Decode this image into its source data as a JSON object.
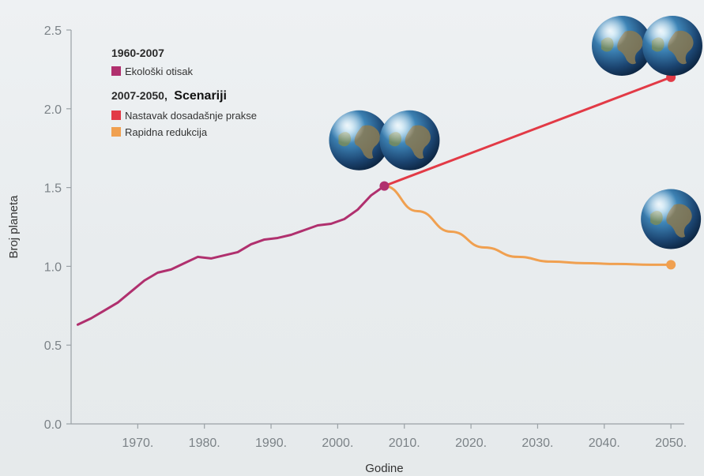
{
  "chart_data": {
    "type": "line",
    "title": "",
    "xlabel": "Godine",
    "ylabel": "Broj planeta",
    "xlim": [
      1960,
      2052
    ],
    "ylim": [
      0,
      2.5
    ],
    "x_ticks": [
      1970,
      1980,
      1990,
      2000,
      2010,
      2020,
      2030,
      2040,
      2050
    ],
    "x_tick_labels": [
      "1970.",
      "1980.",
      "1990.",
      "2000.",
      "2010.",
      "2020.",
      "2030.",
      "2040.",
      "2050."
    ],
    "y_ticks": [
      0,
      0.5,
      1.0,
      1.5,
      2.0,
      2.5
    ],
    "y_tick_labels": [
      "0.0",
      "0.5",
      "1.0",
      "1.5",
      "2.0",
      "2.5"
    ],
    "grid": false,
    "legend": {
      "placement": "top-left",
      "group1_heading": "1960-2007",
      "group2_heading_years": "2007-2050,",
      "group2_heading_word": "Scenariji"
    },
    "series": [
      {
        "name": "Ekološki otisak",
        "color": "#b0306e",
        "x": [
          1961,
          1963,
          1965,
          1967,
          1969,
          1971,
          1973,
          1975,
          1977,
          1979,
          1981,
          1983,
          1985,
          1987,
          1989,
          1991,
          1993,
          1995,
          1997,
          1999,
          2001,
          2003,
          2005,
          2007
        ],
        "y": [
          0.63,
          0.67,
          0.72,
          0.77,
          0.84,
          0.91,
          0.96,
          0.98,
          1.02,
          1.06,
          1.05,
          1.07,
          1.09,
          1.14,
          1.17,
          1.18,
          1.2,
          1.23,
          1.26,
          1.27,
          1.3,
          1.36,
          1.45,
          1.51
        ]
      },
      {
        "name": "Nastavak dosadašnje prakse",
        "color": "#e23a46",
        "x": [
          2007,
          2050
        ],
        "y": [
          1.51,
          2.2
        ],
        "end_marker": true
      },
      {
        "name": "Rapidna redukcija",
        "color": "#f0a050",
        "x": [
          2007,
          2012,
          2017,
          2022,
          2027,
          2032,
          2037,
          2042,
          2047,
          2050
        ],
        "y": [
          1.51,
          1.35,
          1.22,
          1.12,
          1.06,
          1.03,
          1.02,
          1.015,
          1.01,
          1.01
        ],
        "end_marker": true
      }
    ],
    "point_marker": {
      "x": 2007,
      "y": 1.51,
      "color": "#b0306e"
    },
    "icons": [
      {
        "name": "earth-icon",
        "x": 2007,
        "y": 1.8,
        "count": 2
      },
      {
        "name": "earth-icon",
        "x": 2050,
        "y": 2.4,
        "count": 2
      },
      {
        "name": "earth-icon",
        "x": 2050,
        "y": 1.3,
        "count": 1
      }
    ]
  }
}
